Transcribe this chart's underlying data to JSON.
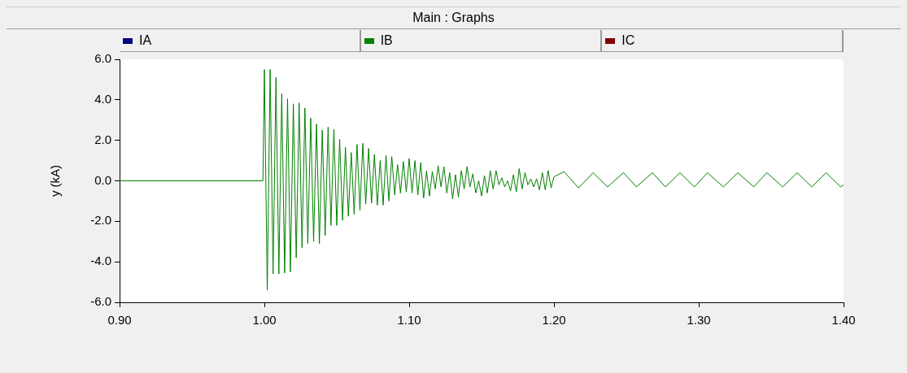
{
  "chart_data": {
    "type": "line",
    "title": "Main : Graphs",
    "ylabel": "y (kA)",
    "legend": "top",
    "grid": false,
    "marker": "none",
    "line_style": "solid",
    "xlim": [
      0.9,
      1.4
    ],
    "xticks": [
      {
        "value": 0.9,
        "label": "0.90"
      },
      {
        "value": 1.0,
        "label": "1.00"
      },
      {
        "value": 1.1,
        "label": "1.10"
      },
      {
        "value": 1.2,
        "label": "1.20"
      },
      {
        "value": 1.3,
        "label": "1.30"
      },
      {
        "value": 1.4,
        "label": "1.40"
      }
    ],
    "ylim": [
      -6,
      6
    ],
    "yticks": [
      {
        "value": -6,
        "label": "-6.0"
      },
      {
        "value": -4,
        "label": "-4.0"
      },
      {
        "value": -2,
        "label": "-2.0"
      },
      {
        "value": 0,
        "label": "0.0"
      },
      {
        "value": 2,
        "label": "2.0"
      },
      {
        "value": 4,
        "label": "4.0"
      },
      {
        "value": 6,
        "label": "6.0"
      }
    ],
    "series": [
      {
        "name": "IA",
        "color": "#000080"
      },
      {
        "name": "IB",
        "color": "#008000",
        "x": [
          0.9,
          0.999,
          1.0,
          1.002,
          1.004,
          1.006,
          1.008,
          1.01,
          1.012,
          1.014,
          1.016,
          1.018,
          1.02,
          1.022,
          1.024,
          1.026,
          1.028,
          1.03,
          1.032,
          1.034,
          1.036,
          1.038,
          1.04,
          1.042,
          1.044,
          1.046,
          1.048,
          1.05,
          1.052,
          1.054,
          1.056,
          1.058,
          1.06,
          1.062,
          1.064,
          1.066,
          1.068,
          1.07,
          1.072,
          1.074,
          1.076,
          1.078,
          1.08,
          1.082,
          1.084,
          1.086,
          1.088,
          1.09,
          1.092,
          1.094,
          1.096,
          1.098,
          1.1,
          1.102,
          1.104,
          1.106,
          1.108,
          1.11,
          1.112,
          1.114,
          1.116,
          1.118,
          1.12,
          1.122,
          1.124,
          1.126,
          1.128,
          1.13,
          1.132,
          1.134,
          1.136,
          1.138,
          1.14,
          1.142,
          1.144,
          1.146,
          1.148,
          1.15,
          1.152,
          1.154,
          1.156,
          1.158,
          1.16,
          1.162,
          1.164,
          1.166,
          1.168,
          1.17,
          1.172,
          1.174,
          1.176,
          1.178,
          1.18,
          1.182,
          1.184,
          1.186,
          1.188,
          1.19,
          1.192,
          1.194,
          1.196,
          1.198,
          1.2,
          1.207,
          1.217,
          1.227,
          1.237,
          1.248,
          1.257,
          1.268,
          1.277,
          1.287,
          1.297,
          1.306,
          1.317,
          1.327,
          1.338,
          1.347,
          1.358,
          1.368,
          1.378,
          1.388,
          1.398,
          1.4
        ],
        "values": [
          0,
          0,
          5.5,
          -5.4,
          5.5,
          -4.6,
          5.1,
          -4.6,
          4.3,
          -4.55,
          4.05,
          -4.5,
          3.8,
          -3.8,
          3.85,
          -3.3,
          3.6,
          -3.1,
          3.1,
          -3.0,
          2.8,
          -3.1,
          2.5,
          -2.7,
          2.65,
          -2.2,
          2.55,
          -2.2,
          2.05,
          -1.95,
          1.65,
          -1.75,
          1.4,
          -1.65,
          1.8,
          -1.45,
          1.85,
          -1.15,
          1.6,
          -1.1,
          1.3,
          -1.2,
          1.0,
          -1.2,
          1.25,
          -1.0,
          1.2,
          -0.7,
          0.8,
          -0.6,
          0.95,
          -0.55,
          1.1,
          -0.6,
          1.0,
          -0.7,
          0.9,
          -0.85,
          0.5,
          -0.75,
          0.45,
          -0.4,
          0.75,
          -0.3,
          0.7,
          -0.6,
          0.4,
          -0.9,
          0.3,
          -0.8,
          0.5,
          -0.4,
          0.7,
          -0.3,
          0.35,
          -0.6,
          0.0,
          -0.75,
          0.25,
          -0.6,
          0.5,
          -0.4,
          0.5,
          -0.2,
          0.15,
          -0.3,
          0.0,
          -0.5,
          0.3,
          -0.55,
          0.6,
          -0.4,
          0.4,
          -0.2,
          0.1,
          -0.3,
          0.1,
          -0.45,
          0.4,
          -0.45,
          0.5,
          -0.35,
          0.2,
          0.45,
          -0.35,
          0.4,
          -0.3,
          0.4,
          -0.3,
          0.4,
          -0.3,
          0.4,
          -0.3,
          0.4,
          -0.3,
          0.4,
          -0.3,
          0.4,
          -0.3,
          0.4,
          -0.3,
          0.4,
          -0.3,
          -0.2
        ]
      },
      {
        "name": "IC",
        "color": "#800000"
      }
    ]
  }
}
